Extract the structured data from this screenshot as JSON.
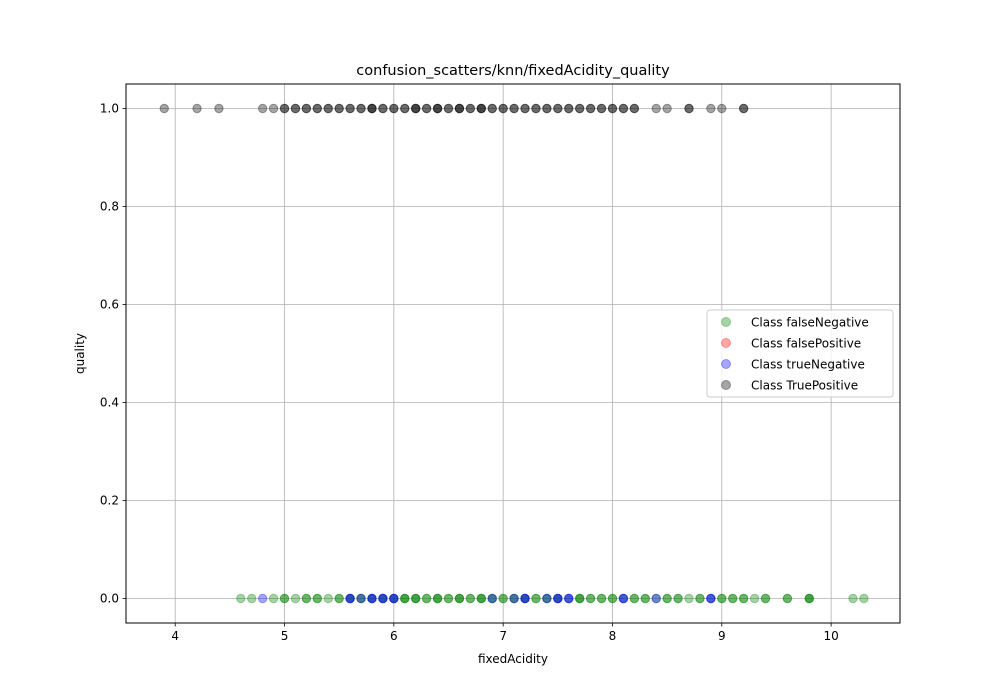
{
  "chart_data": {
    "type": "scatter",
    "title": "confusion_scatters/knn/fixedAcidity_quality",
    "xlabel": "fixedAcidity",
    "ylabel": "quality",
    "xlim": [
      3.55,
      10.63
    ],
    "ylim": [
      -0.05,
      1.05
    ],
    "xticks": [
      4,
      5,
      6,
      7,
      8,
      9,
      10
    ],
    "yticks": [
      0.0,
      0.2,
      0.4,
      0.6,
      0.8,
      1.0
    ],
    "xtick_labels": [
      "4",
      "5",
      "6",
      "7",
      "8",
      "9",
      "10"
    ],
    "ytick_labels": [
      "0.0",
      "0.2",
      "0.4",
      "0.6",
      "0.8",
      "1.0"
    ],
    "grid": true,
    "legend_position": "center-right",
    "series": [
      {
        "name": "Class falseNegative",
        "color": "#008000",
        "y": 0,
        "x": [
          4.6,
          4.7,
          4.9,
          5.0,
          5.0,
          5.1,
          5.2,
          5.2,
          5.3,
          5.3,
          5.4,
          5.5,
          5.5,
          5.6,
          5.6,
          5.7,
          5.7,
          5.8,
          5.8,
          5.9,
          5.9,
          6.0,
          6.0,
          6.1,
          6.1,
          6.1,
          6.2,
          6.2,
          6.2,
          6.3,
          6.3,
          6.4,
          6.4,
          6.4,
          6.5,
          6.5,
          6.6,
          6.6,
          6.6,
          6.7,
          6.7,
          6.8,
          6.8,
          6.8,
          6.9,
          6.9,
          7.0,
          7.0,
          7.1,
          7.1,
          7.2,
          7.2,
          7.3,
          7.3,
          7.4,
          7.4,
          7.5,
          7.5,
          7.6,
          7.7,
          7.7,
          7.7,
          7.8,
          7.8,
          7.9,
          7.9,
          8.0,
          8.0,
          8.1,
          8.2,
          8.2,
          8.3,
          8.3,
          8.4,
          8.5,
          8.5,
          8.6,
          8.6,
          8.7,
          8.8,
          8.8,
          8.9,
          9.0,
          9.0,
          9.1,
          9.1,
          9.2,
          9.2,
          9.3,
          9.4,
          9.4,
          9.6,
          9.6,
          9.8,
          9.8,
          9.8,
          10.2,
          10.3
        ]
      },
      {
        "name": "Class falsePositive",
        "color": "#ff0000",
        "y": 1,
        "x": []
      },
      {
        "name": "Class trueNegative",
        "color": "#0000ff",
        "y": 0,
        "x": [
          4.8,
          5.6,
          5.6,
          5.7,
          5.8,
          5.8,
          5.9,
          5.9,
          6.0,
          6.0,
          6.9,
          7.1,
          7.2,
          7.2,
          7.4,
          7.5,
          7.5,
          7.6,
          7.6,
          8.1,
          8.1,
          8.4,
          8.9,
          8.9
        ]
      },
      {
        "name": "Class TruePositive",
        "color": "#000000",
        "y": 1,
        "x": [
          3.9,
          4.2,
          4.4,
          4.8,
          4.9,
          5.0,
          5.0,
          5.1,
          5.1,
          5.2,
          5.2,
          5.3,
          5.3,
          5.4,
          5.4,
          5.5,
          5.5,
          5.6,
          5.6,
          5.7,
          5.7,
          5.8,
          5.8,
          5.8,
          5.9,
          5.9,
          6.0,
          6.0,
          6.1,
          6.1,
          6.2,
          6.2,
          6.2,
          6.3,
          6.3,
          6.4,
          6.4,
          6.4,
          6.5,
          6.5,
          6.6,
          6.6,
          6.6,
          6.7,
          6.7,
          6.8,
          6.8,
          6.8,
          6.9,
          6.9,
          7.0,
          7.0,
          7.1,
          7.1,
          7.2,
          7.2,
          7.3,
          7.3,
          7.4,
          7.4,
          7.5,
          7.5,
          7.6,
          7.6,
          7.7,
          7.7,
          7.8,
          7.8,
          7.9,
          7.9,
          8.0,
          8.0,
          8.1,
          8.1,
          8.2,
          8.2,
          8.4,
          8.5,
          8.7,
          8.7,
          8.9,
          9.0,
          9.2,
          9.2
        ]
      }
    ]
  }
}
